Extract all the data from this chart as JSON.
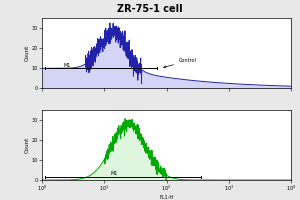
{
  "title": "ZR-75-1 cell",
  "title_fontsize": 7,
  "background_color": "#e8e8e8",
  "plot_bg_color": "#ffffff",
  "top_histogram": {
    "color": "#2222aa",
    "fill_color": "#aaaaee",
    "peak_log": 1.15,
    "peak_height": 28,
    "spread": 0.22,
    "baseline": 10,
    "ylim": [
      0,
      35
    ],
    "yticks": [
      0,
      10,
      20,
      30
    ],
    "ylabel": "Count"
  },
  "bottom_histogram": {
    "color": "#00aa00",
    "fill_color": "#aaeaaa",
    "peak_log": 1.4,
    "peak_height": 28,
    "spread": 0.28,
    "ylim": [
      0,
      35
    ],
    "yticks": [
      0,
      10,
      20,
      30
    ],
    "ylabel": "Count"
  },
  "xlabel": "FL1-H",
  "xlog_min": 0,
  "xlog_max": 4
}
